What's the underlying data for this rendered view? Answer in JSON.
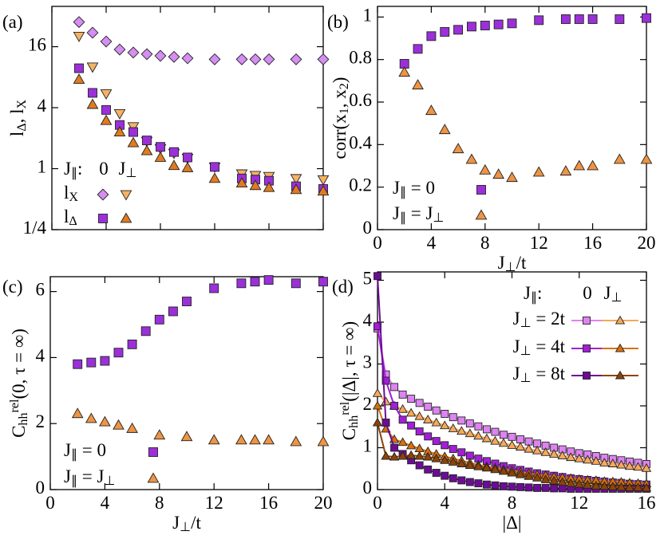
{
  "chart_data": [
    {
      "type": "scatter",
      "label": "(a)",
      "ylabel": "l_Δ, l_X",
      "xlim": [
        0,
        20
      ],
      "xticks": [
        0,
        4,
        8,
        12,
        16,
        20
      ],
      "xtick_labels": false,
      "ylim": [
        0.25,
        40
      ],
      "yscale": "log",
      "yticks": [
        {
          "value": 0.25,
          "label": "1/4"
        },
        1,
        4,
        16
      ],
      "legend": {
        "title": "J_∥:",
        "columns": [
          "0",
          "J_⊥"
        ],
        "rows": [
          "l_X",
          "l_Δ"
        ]
      },
      "series": [
        {
          "color": "#d58ef2",
          "marker": "diamond",
          "x": [
            2,
            3,
            4,
            5,
            6,
            7,
            8,
            9,
            10,
            12,
            14,
            15,
            16,
            18,
            20
          ],
          "values": [
            28,
            22,
            18,
            15,
            14,
            13.5,
            13,
            12.7,
            12.3,
            12,
            12,
            12,
            12,
            12,
            12
          ]
        },
        {
          "color": "#f5b266",
          "marker": "triangle-down",
          "x": [
            2,
            3,
            4,
            5,
            6,
            7,
            8,
            9,
            10,
            12,
            14,
            15,
            16,
            18,
            20
          ],
          "values": [
            20.3,
            10.1,
            5.5,
            3.5,
            2.6,
            1.87,
            1.58,
            1.42,
            1.27,
            1.04,
            0.89,
            0.86,
            0.84,
            0.8,
            0.78
          ]
        },
        {
          "color": "#9b30d9",
          "marker": "square",
          "x": [
            2,
            3,
            4,
            5,
            6,
            7,
            8,
            9,
            10,
            12,
            14,
            15,
            16,
            18,
            20
          ],
          "values": [
            9.8,
            5.6,
            3.8,
            2.7,
            2.3,
            1.9,
            1.64,
            1.46,
            1.29,
            1.04,
            0.8,
            0.78,
            0.76,
            0.67,
            0.63
          ]
        },
        {
          "color": "#e07b20",
          "marker": "triangle-up",
          "x": [
            2,
            3,
            4,
            5,
            6,
            7,
            8,
            9,
            10,
            12,
            14,
            15,
            16,
            18,
            20
          ],
          "values": [
            7.6,
            4.3,
            2.98,
            2.3,
            1.8,
            1.5,
            1.29,
            1.07,
            1.02,
            0.8,
            0.72,
            0.68,
            0.65,
            0.62,
            0.6
          ]
        }
      ]
    },
    {
      "type": "scatter",
      "label": "(b)",
      "ylabel": "corr(x_1, x_2)",
      "xlabel": "J_⊥/t",
      "xlim": [
        0,
        20
      ],
      "xticks": [
        0,
        4,
        8,
        12,
        16,
        20
      ],
      "ylim": [
        0,
        1.05
      ],
      "yticks": [
        0,
        0.2,
        0.4,
        0.6,
        0.8,
        1
      ],
      "series": [
        {
          "name": "J_∥ = 0",
          "color": "#9b30d9",
          "marker": "square",
          "x": [
            2,
            3,
            4,
            5,
            6,
            7,
            8,
            9,
            10,
            12,
            14,
            15,
            16,
            18,
            20
          ],
          "values": [
            0.78,
            0.85,
            0.91,
            0.93,
            0.94,
            0.955,
            0.96,
            0.965,
            0.97,
            0.985,
            0.99,
            0.99,
            0.99,
            0.99,
            0.995
          ]
        },
        {
          "name": "J_∥ = J_⊥",
          "color": "#ee9444",
          "marker": "triangle-up",
          "x": [
            2,
            3,
            4,
            5,
            6,
            7,
            8,
            9,
            10,
            12,
            14,
            15,
            16,
            18,
            20
          ],
          "values": [
            0.74,
            0.68,
            0.56,
            0.47,
            0.38,
            0.33,
            0.28,
            0.26,
            0.245,
            0.27,
            0.275,
            0.3,
            0.3,
            0.33,
            0.33
          ]
        }
      ]
    },
    {
      "type": "scatter",
      "label": "(c)",
      "ylabel": "C_hh^rel(0, τ = ∞)",
      "xlabel": "J_⊥/t",
      "xlim": [
        0,
        20
      ],
      "xticks": [
        0,
        4,
        8,
        12,
        16,
        20
      ],
      "ylim": [
        0,
        6.45
      ],
      "yticks": [
        0,
        2,
        4,
        6
      ],
      "series": [
        {
          "name": "J_∥ = 0",
          "color": "#9b30d9",
          "marker": "square",
          "x": [
            2,
            3,
            4,
            5,
            6,
            7,
            8,
            9,
            10,
            12,
            14,
            15,
            16,
            18,
            20
          ],
          "values": [
            3.8,
            3.85,
            3.9,
            4.15,
            4.4,
            4.8,
            5.15,
            5.4,
            5.7,
            6.1,
            6.25,
            6.3,
            6.35,
            6.25,
            6.3
          ]
        },
        {
          "name": "J_∥ = J_⊥",
          "color": "#ee9444",
          "marker": "triangle-up",
          "x": [
            2,
            3,
            4,
            5,
            6,
            8,
            10,
            12,
            14,
            15,
            16,
            18,
            20
          ],
          "values": [
            2.3,
            2.15,
            2.05,
            1.95,
            1.85,
            1.65,
            1.6,
            1.5,
            1.5,
            1.5,
            1.5,
            1.45,
            1.45
          ]
        }
      ]
    },
    {
      "type": "line",
      "label": "(d)",
      "ylabel": "C_hh^rel(|Δ|, τ = ∞)",
      "xlabel": "|Δ|",
      "xlim": [
        0,
        16
      ],
      "xticks": [
        0,
        4,
        8,
        12,
        16
      ],
      "ylim": [
        0,
        5.2
      ],
      "yticks": [
        0,
        1,
        2,
        3,
        4,
        5
      ],
      "legend": {
        "title": "J_∥:",
        "columns": [
          "0",
          "J_⊥"
        ],
        "rows": [
          "J_⊥ = 2t",
          "J_⊥ = 4t",
          "J_⊥ = 8t"
        ]
      },
      "x": [
        0,
        0.5,
        1,
        1.5,
        2,
        2.5,
        3,
        3.5,
        4,
        4.5,
        5,
        5.5,
        6,
        6.5,
        7,
        7.5,
        8,
        8.5,
        9,
        9.5,
        10,
        10.5,
        11,
        11.5,
        12,
        12.5,
        13,
        13.5,
        14,
        14.5,
        15,
        15.5,
        16
      ],
      "series": [
        {
          "color": "#de84f2",
          "marker": "square",
          "values": [
            3.85,
            2.75,
            2.45,
            2.27,
            2.17,
            2.07,
            1.98,
            1.89,
            1.81,
            1.73,
            1.65,
            1.58,
            1.51,
            1.44,
            1.38,
            1.31,
            1.26,
            1.2,
            1.15,
            1.1,
            1.05,
            1,
            0.96,
            0.91,
            0.87,
            0.84,
            0.8,
            0.76,
            0.73,
            0.7,
            0.67,
            0.64,
            0.61
          ]
        },
        {
          "color": "#f7a85a",
          "marker": "triangle-up",
          "values": [
            2.3,
            2.1,
            2.0,
            1.92,
            1.83,
            1.75,
            1.67,
            1.6,
            1.53,
            1.46,
            1.4,
            1.34,
            1.28,
            1.22,
            1.16,
            1.11,
            1.06,
            1.02,
            0.97,
            0.93,
            0.89,
            0.85,
            0.81,
            0.77,
            0.74,
            0.71,
            0.68,
            0.64,
            0.62,
            0.59,
            0.56,
            0.54,
            0.51
          ]
        },
        {
          "color": "#a21ed8",
          "marker": "square",
          "values": [
            3.9,
            2.6,
            2.0,
            1.67,
            1.53,
            1.39,
            1.27,
            1.16,
            1.06,
            0.97,
            0.89,
            0.81,
            0.74,
            0.68,
            0.62,
            0.56,
            0.51,
            0.47,
            0.43,
            0.39,
            0.36,
            0.33,
            0.3,
            0.27,
            0.25,
            0.23,
            0.21,
            0.19,
            0.17,
            0.16,
            0.14,
            0.13,
            0.12
          ]
        },
        {
          "color": "#d8700f",
          "marker": "triangle-up",
          "values": [
            2.0,
            1.45,
            1.2,
            1.13,
            1.05,
            0.98,
            0.91,
            0.85,
            0.79,
            0.74,
            0.69,
            0.64,
            0.59,
            0.55,
            0.52,
            0.48,
            0.45,
            0.42,
            0.39,
            0.36,
            0.34,
            0.31,
            0.29,
            0.27,
            0.25,
            0.23,
            0.22,
            0.2,
            0.19,
            0.18,
            0.16,
            0.15,
            0.14
          ]
        },
        {
          "color": "#6c0c96",
          "marker": "square",
          "values": [
            5.1,
            1.6,
            1.0,
            0.85,
            0.7,
            0.58,
            0.48,
            0.4,
            0.33,
            0.27,
            0.22,
            0.18,
            0.15,
            0.12,
            0.1,
            0.08,
            0.07,
            0.06,
            0.05,
            0.04,
            0.04,
            0.03,
            0.03,
            0.02,
            0.02,
            0.02,
            0.02,
            0.02,
            0.02,
            0.02,
            0.02,
            0.02,
            0.02
          ]
        },
        {
          "color": "#8e4306",
          "marker": "triangle-up",
          "values": [
            1.6,
            0.8,
            0.78,
            0.8,
            0.82,
            0.8,
            0.78,
            0.74,
            0.7,
            0.66,
            0.62,
            0.58,
            0.55,
            0.52,
            0.48,
            0.44,
            0.4,
            0.36,
            0.32,
            0.28,
            0.24,
            0.21,
            0.18,
            0.15,
            0.13,
            0.11,
            0.09,
            0.08,
            0.07,
            0.06,
            0.05,
            0.05,
            0.04
          ]
        }
      ]
    }
  ]
}
